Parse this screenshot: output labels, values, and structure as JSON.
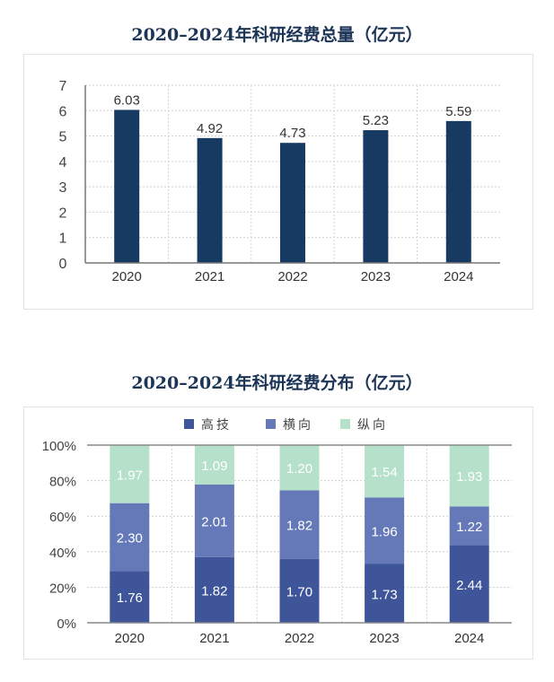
{
  "chart_data": [
    {
      "type": "bar",
      "title": "2020–2024年科研经费总量（亿元）",
      "categories": [
        "2020",
        "2021",
        "2022",
        "2023",
        "2024"
      ],
      "values": [
        6.03,
        4.92,
        4.73,
        5.23,
        5.59
      ],
      "data_labels": [
        "6.03",
        "4.92",
        "4.73",
        "5.23",
        "5.59"
      ],
      "yticks": [
        "0",
        "1",
        "2",
        "3",
        "4",
        "5",
        "6",
        "7"
      ],
      "ylim": [
        0,
        7
      ],
      "xlabel": "",
      "ylabel": "",
      "grid": true,
      "color": "#173a63"
    },
    {
      "type": "bar",
      "stacked": "percent",
      "title": "2020–2024年科研经费分布（亿元）",
      "categories": [
        "2020",
        "2021",
        "2022",
        "2023",
        "2024"
      ],
      "series": [
        {
          "name": "高技",
          "values": [
            1.76,
            1.82,
            1.7,
            1.73,
            2.44
          ],
          "labels": [
            "1.76",
            "1.82",
            "1.70",
            "1.73",
            "2.44"
          ],
          "color": "#3f559a"
        },
        {
          "name": "横向",
          "values": [
            2.3,
            2.01,
            1.82,
            1.96,
            1.22
          ],
          "labels": [
            "2.30",
            "2.01",
            "1.82",
            "1.96",
            "1.22"
          ],
          "color": "#6579b8"
        },
        {
          "name": "纵向",
          "values": [
            1.97,
            1.09,
            1.2,
            1.54,
            1.93
          ],
          "labels": [
            "1.97",
            "1.09",
            "1.20",
            "1.54",
            "1.93"
          ],
          "color": "#b5e0c9"
        }
      ],
      "yticks": [
        "0%",
        "20%",
        "40%",
        "60%",
        "80%",
        "100%"
      ],
      "ylim": [
        0,
        100
      ],
      "legend": "top-center",
      "grid": true
    }
  ]
}
